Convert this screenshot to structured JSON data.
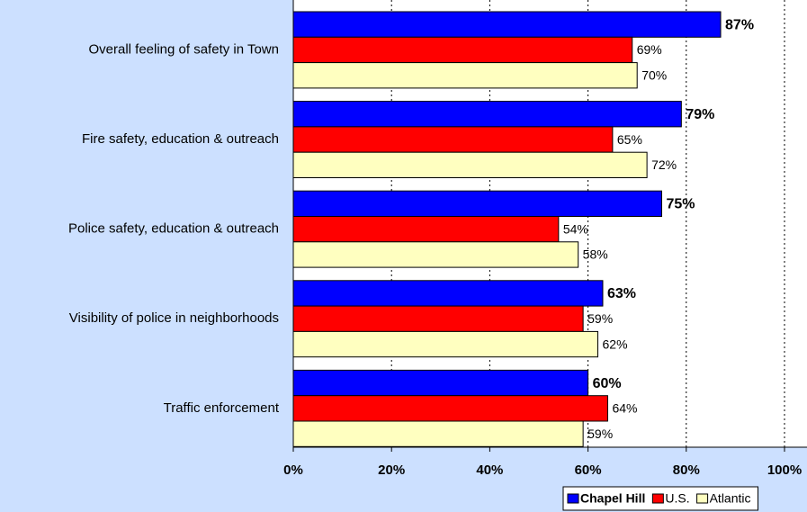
{
  "chart_data": {
    "type": "bar",
    "orientation": "horizontal",
    "categories": [
      "Overall feeling of safety in Town",
      "Fire safety, education & outreach",
      "Police safety, education & outreach",
      "Visibility of police in neighborhoods",
      "Traffic enforcement"
    ],
    "series": [
      {
        "name": "Chapel Hill",
        "color": "#0000ff",
        "values": [
          87,
          79,
          75,
          63,
          60
        ],
        "value_labels": [
          "87%",
          "79%",
          "75%",
          "63%",
          "60%"
        ]
      },
      {
        "name": "U.S.",
        "color": "#ff0000",
        "values": [
          69,
          65,
          54,
          59,
          64
        ],
        "value_labels": [
          "69%",
          "65%",
          "54%",
          "59%",
          "64%"
        ]
      },
      {
        "name": "Atlantic",
        "color": "#ffffc0",
        "values": [
          70,
          72,
          58,
          62,
          59
        ],
        "value_labels": [
          "70%",
          "72%",
          "58%",
          "62%",
          "59%"
        ]
      }
    ],
    "xlim": [
      0,
      100
    ],
    "xticks": [
      {
        "value": 0,
        "label": "0%"
      },
      {
        "value": 20,
        "label": "20%"
      },
      {
        "value": 40,
        "label": "40%"
      },
      {
        "value": 60,
        "label": "60%"
      },
      {
        "value": 80,
        "label": "80%"
      },
      {
        "value": 100,
        "label": "100%"
      }
    ],
    "grid": true,
    "legend": "bottom-right"
  }
}
